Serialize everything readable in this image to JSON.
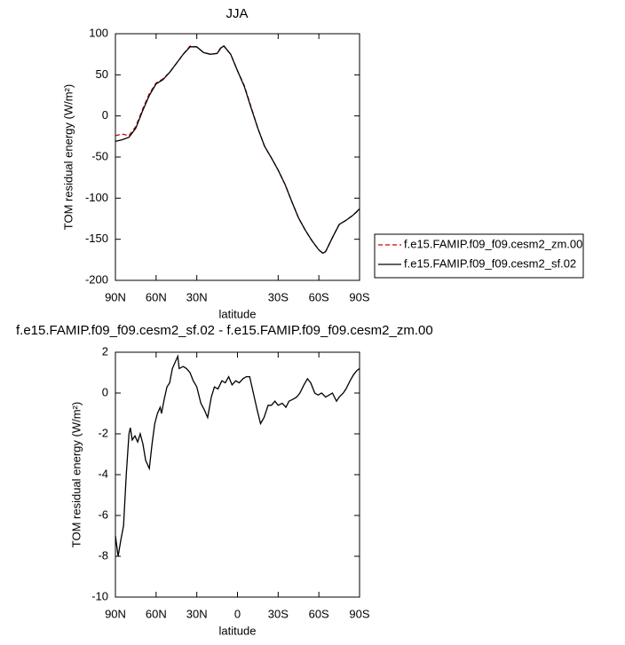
{
  "chart_data": [
    {
      "type": "line",
      "title": "JJA",
      "x_label": "latitude",
      "y_label": "TOM residual energy (W/m²)",
      "x": [
        90,
        85,
        80,
        75,
        70,
        65,
        60,
        55,
        50,
        45,
        40,
        35,
        30,
        25,
        20,
        15,
        12,
        10,
        5,
        0,
        -5,
        -10,
        -15,
        -20,
        -25,
        -30,
        -35,
        -40,
        -45,
        -50,
        -55,
        -60,
        -63,
        -65,
        -70,
        -75,
        -80,
        -85,
        -90
      ],
      "series": [
        {
          "name": "f.e15.FAMIP.f09_f09.cesm2_zm.00",
          "color": "#cc0000",
          "dash": true,
          "values": [
            -24,
            -22,
            -24,
            -13,
            8,
            27,
            40,
            45,
            53,
            64,
            75,
            85,
            84,
            77,
            75,
            76,
            84,
            85,
            75,
            55,
            37,
            11,
            -15,
            -37,
            -51,
            -66,
            -83,
            -104,
            -124,
            -139,
            -152,
            -163,
            -167,
            -165,
            -148,
            -132,
            -127,
            -121,
            -114
          ]
        },
        {
          "name": "f.e15.FAMIP.f09_f09.cesm2_sf.02",
          "color": "#000000",
          "dash": false,
          "values": [
            -31,
            -29,
            -26,
            -15,
            6,
            25,
            39,
            44,
            53,
            64,
            75,
            84,
            84,
            77,
            75,
            76,
            83,
            85,
            75,
            55,
            36,
            10,
            -15,
            -37,
            -51,
            -66,
            -83,
            -104,
            -124,
            -139,
            -152,
            -163,
            -167,
            -165,
            -148,
            -132,
            -127,
            -121,
            -113
          ]
        }
      ],
      "xlim": [
        90,
        -90
      ],
      "xticks": [
        {
          "value": 90,
          "label": "90N"
        },
        {
          "value": 60,
          "label": "60N"
        },
        {
          "value": 30,
          "label": "30N"
        },
        {
          "value": -30,
          "label": "30S"
        },
        {
          "value": -60,
          "label": "60S"
        },
        {
          "value": -90,
          "label": "90S"
        }
      ],
      "ylim": [
        -200,
        100
      ],
      "yticks": [
        -200,
        -150,
        -100,
        -50,
        0,
        50,
        100
      ],
      "legend": "right"
    },
    {
      "type": "line",
      "title": "f.e15.FAMIP.f09_f09.cesm2_sf.02 - f.e15.FAMIP.f09_f09.cesm2_zm.00",
      "x_label": "latitude",
      "y_label": "TOM residual energy (W/m²)",
      "x": [
        90,
        89,
        88,
        86,
        84,
        82,
        80,
        79,
        77.6,
        75.6,
        73.6,
        71.7,
        69.7,
        67.7,
        65,
        63,
        61,
        59,
        57,
        56,
        54,
        52,
        50,
        48,
        46,
        44,
        43,
        40,
        37.6,
        35,
        32.6,
        30,
        27,
        24.6,
        22,
        19.3,
        17,
        14.4,
        11.5,
        9,
        6.5,
        4,
        1.3,
        -1.3,
        -4,
        -6.5,
        -9,
        -11.7,
        -14.4,
        -17,
        -19.6,
        -22.6,
        -25,
        -27.6,
        -30,
        -33,
        -35.7,
        -38,
        -41,
        -43.6,
        -46,
        -49,
        -51.6,
        -54,
        -57,
        -59.5,
        -62,
        -65,
        -67.5,
        -70,
        -73,
        -75,
        -78,
        -80,
        -83,
        -85.6,
        -88,
        -90
      ],
      "series": [
        {
          "color": "#000000",
          "dash": false,
          "values": [
            -7,
            -7.5,
            -8,
            -7.2,
            -6.5,
            -4,
            -2,
            -1.7,
            -2.3,
            -2.1,
            -2.4,
            -2,
            -2.5,
            -3.3,
            -3.7,
            -2.5,
            -1.5,
            -1,
            -0.7,
            -1,
            -0.3,
            0.3,
            0.5,
            1.2,
            1.5,
            1.8,
            1.2,
            1.3,
            1.2,
            1,
            0.6,
            0.3,
            -0.5,
            -0.8,
            -1.2,
            -0.2,
            0.3,
            0.2,
            0.6,
            0.5,
            0.8,
            0.4,
            0.6,
            0.5,
            0.7,
            0.8,
            0.8,
            0,
            -0.8,
            -1.5,
            -1.2,
            -0.6,
            -0.6,
            -0.4,
            -0.6,
            -0.5,
            -0.7,
            -0.4,
            -0.3,
            -0.2,
            0,
            0.4,
            0.7,
            0.5,
            0,
            -0.1,
            0,
            -0.2,
            -0.1,
            0,
            -0.4,
            -0.2,
            0,
            0.2,
            0.6,
            0.9,
            1.1,
            1.2
          ]
        }
      ],
      "xlim": [
        90,
        -90
      ],
      "xticks": [
        {
          "value": 90,
          "label": "90N"
        },
        {
          "value": 60,
          "label": "60N"
        },
        {
          "value": 30,
          "label": "30N"
        },
        {
          "value": 0,
          "label": "0"
        },
        {
          "value": -30,
          "label": "30S"
        },
        {
          "value": -60,
          "label": "60S"
        },
        {
          "value": -90,
          "label": "90S"
        }
      ],
      "ylim": [
        -10,
        2
      ],
      "yticks": [
        -10,
        -8,
        -6,
        -4,
        -2,
        0,
        2
      ]
    }
  ]
}
